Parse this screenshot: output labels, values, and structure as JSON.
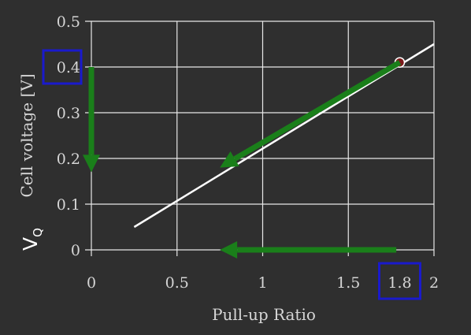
{
  "chart_data": {
    "type": "line",
    "xlabel": "Pull-up Ratio",
    "ylabel": "Cell voltage [V]",
    "xlim": [
      0,
      2
    ],
    "ylim": [
      0,
      0.5
    ],
    "xticks": [
      "0",
      "0.5",
      "1",
      "1.5",
      "1.8",
      "2"
    ],
    "xtick_values": [
      0,
      0.5,
      1,
      1.5,
      1.8,
      2
    ],
    "yticks": [
      "0",
      "0.1",
      "0.2",
      "0.3",
      "0.4",
      "0.5"
    ],
    "ytick_values": [
      0,
      0.1,
      0.2,
      0.3,
      0.4,
      0.5
    ],
    "grid": true,
    "series": [
      {
        "x": [
          0.25,
          2.0
        ],
        "y": [
          0.05,
          0.45
        ],
        "color": "#ffffff"
      }
    ],
    "marker": {
      "x": 1.8,
      "y": 0.41,
      "color": "#7a1a1a"
    },
    "annotations": {
      "vq_label": "V",
      "vq_subscript": "Q",
      "highlight_boxes": [
        {
          "tick": "0.4",
          "axis": "y"
        },
        {
          "tick": "1.8",
          "axis": "x"
        }
      ],
      "arrows": [
        {
          "from": [
            1.8,
            0.41
          ],
          "to": [
            0.75,
            0.18
          ]
        },
        {
          "from": [
            1.78,
            0.0
          ],
          "to": [
            0.75,
            0.0
          ]
        },
        {
          "from": [
            0.0,
            0.4
          ],
          "to": [
            0.0,
            0.17
          ]
        }
      ],
      "arrow_color": "#1a7f1a",
      "box_color": "#1a1acc"
    }
  }
}
